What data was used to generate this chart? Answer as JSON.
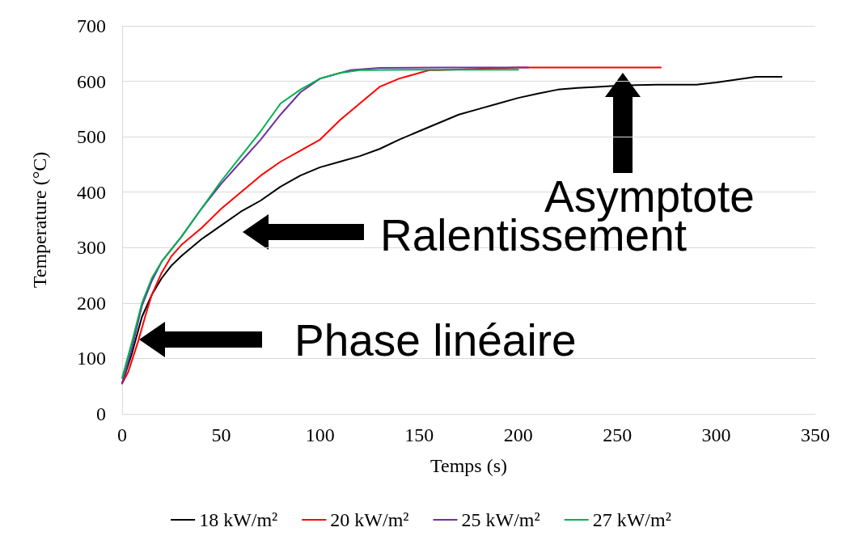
{
  "chart_data": {
    "type": "line",
    "xlabel": "Temps (s)",
    "ylabel": "Temperature (°C)",
    "xlim": [
      0,
      350
    ],
    "xticks": [
      0,
      50,
      100,
      150,
      200,
      250,
      300,
      350
    ],
    "ylim": [
      0,
      700
    ],
    "yticks": [
      0,
      100,
      200,
      300,
      400,
      500,
      600,
      700
    ],
    "grid": "y",
    "legend": "bottom",
    "marker": "none",
    "line_style": "solid",
    "series": [
      {
        "name": "18 kW/m²",
        "color": "#000000",
        "x": [
          0,
          5,
          10,
          15,
          20,
          25,
          30,
          40,
          50,
          60,
          70,
          80,
          90,
          100,
          110,
          120,
          130,
          140,
          150,
          160,
          170,
          180,
          190,
          200,
          210,
          220,
          230,
          240,
          250,
          260,
          270,
          280,
          290,
          300,
          310,
          320,
          333
        ],
        "values": [
          55,
          110,
          175,
          215,
          245,
          268,
          285,
          315,
          340,
          365,
          385,
          410,
          430,
          445,
          455,
          465,
          478,
          495,
          510,
          525,
          540,
          550,
          560,
          570,
          578,
          585,
          588,
          590,
          592,
          593,
          594,
          594,
          594,
          598,
          603,
          608,
          608
        ]
      },
      {
        "name": "20 kW/m²",
        "color": "#ff0000",
        "x": [
          0,
          3,
          8,
          12,
          15,
          20,
          25,
          30,
          40,
          50,
          60,
          70,
          80,
          90,
          100,
          110,
          120,
          130,
          140,
          150,
          155,
          160,
          200,
          272
        ],
        "values": [
          55,
          75,
          130,
          180,
          215,
          255,
          285,
          305,
          335,
          370,
          400,
          430,
          455,
          475,
          495,
          530,
          560,
          590,
          605,
          615,
          620,
          620,
          625,
          625
        ]
      },
      {
        "name": "25 kW/m²",
        "color": "#7030a0",
        "x": [
          0,
          5,
          10,
          15,
          20,
          30,
          40,
          50,
          60,
          70,
          80,
          90,
          100,
          105,
          115,
          130,
          160,
          205
        ],
        "values": [
          55,
          120,
          195,
          240,
          275,
          320,
          370,
          415,
          455,
          495,
          540,
          580,
          605,
          610,
          620,
          624,
          625,
          625
        ]
      },
      {
        "name": "27 kW/m²",
        "color": "#00b050",
        "x": [
          0,
          5,
          10,
          15,
          20,
          30,
          40,
          50,
          60,
          70,
          80,
          90,
          100,
          110,
          120,
          150,
          200
        ],
        "values": [
          65,
          130,
          200,
          245,
          275,
          320,
          370,
          420,
          465,
          510,
          560,
          585,
          605,
          615,
          620,
          621,
          621
        ]
      }
    ],
    "annotations": [
      "Asymptote",
      "Ralentissement",
      "Phase linéaire"
    ]
  }
}
